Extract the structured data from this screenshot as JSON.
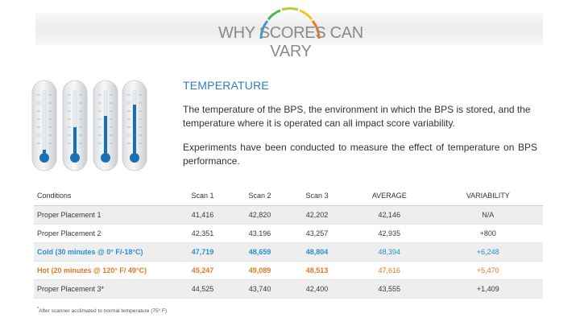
{
  "header": {
    "title": "WHY SCORES CAN VARY"
  },
  "section": {
    "title": "TEMPERATURE",
    "paragraph1": "The temperature of the BPS, the environment in which the BPS is stored, and the temperature where it is operated can all impact score variability.",
    "paragraph2": "Experiments have been conducted to measure the effect of temperature on BPS performance."
  },
  "thermometers": [
    {
      "name": "thermometer-icon",
      "level": 0.06
    },
    {
      "name": "thermometer-icon",
      "level": 0.33
    },
    {
      "name": "thermometer-icon",
      "level": 0.5
    },
    {
      "name": "thermometer-icon",
      "level": 0.65
    }
  ],
  "table": {
    "headers": [
      "Conditions",
      "Scan 1",
      "Scan 2",
      "Scan 3",
      "AVERAGE",
      "VARIABILITY"
    ],
    "rows": [
      {
        "type": "normal",
        "cells": [
          "Proper Placement 1",
          "41,416",
          "42,820",
          "42,202",
          "42,146",
          "N/A"
        ]
      },
      {
        "type": "normal",
        "cells": [
          "Proper Placement 2",
          "42,351",
          "43,196",
          "43,257",
          "42,935",
          "+800"
        ]
      },
      {
        "type": "cold",
        "cells": [
          "Cold (30 minutes @ 0° F/-18°C)",
          "47,719",
          "48,659",
          "48,804",
          "48,394",
          "+6,248"
        ]
      },
      {
        "type": "hot",
        "cells": [
          "Hot (20 minutes @ 120° F/ 49°C)",
          "45,247",
          "49,089",
          "48,513",
          "47,616",
          "+5,470"
        ]
      },
      {
        "type": "normal",
        "cells": [
          "Proper Placement 3*",
          "44,525",
          "43,740",
          "42,400",
          "43,555",
          "+1,409"
        ]
      }
    ]
  },
  "footnote": {
    "marker": "*",
    "text": "After scanner acclimated to normal temperature (75° F)"
  },
  "colors": {
    "accent_blue": "#2f7dc0",
    "cold_blue": "#2a8fd2",
    "hot_orange": "#e47724"
  }
}
